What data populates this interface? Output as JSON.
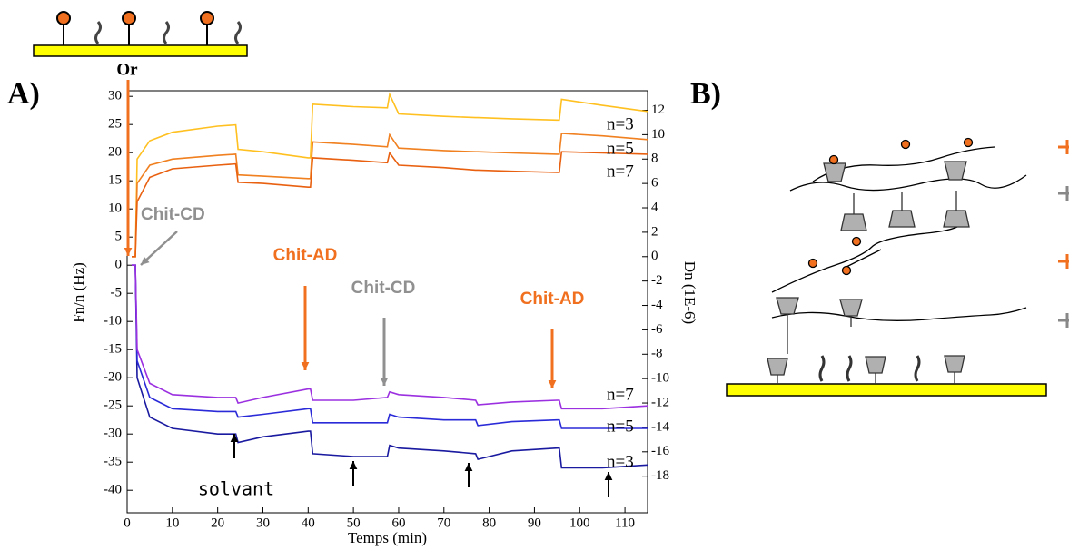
{
  "panel_labels": [
    "A)",
    "B)"
  ],
  "chart_data": {
    "type": "line",
    "surface_label": "Or",
    "xlabel": "Temps (min)",
    "ylabel": "Fn/n (Hz)",
    "y2label": "Dn (1E-6)",
    "annotations": [
      "Chit-CD",
      "Chit-AD",
      "Chit-CD",
      "Chit-AD",
      "solvant"
    ],
    "xlim": [
      0,
      115
    ],
    "xticks": [
      0,
      10,
      20,
      30,
      40,
      50,
      60,
      70,
      80,
      90,
      100,
      110
    ],
    "ylim": [
      -44,
      31
    ],
    "yticks": [
      30,
      25,
      20,
      15,
      10,
      5,
      0,
      -5,
      -10,
      -15,
      -20,
      -25,
      -30,
      -35,
      -40
    ],
    "y2lim": [
      -21,
      13.6
    ],
    "y2ticks": [
      12,
      10,
      8,
      6,
      4,
      2,
      0,
      -2,
      -4,
      -6,
      -8,
      -10,
      -12,
      -14,
      -16,
      -18
    ],
    "x": [
      1,
      1.8,
      2.2,
      5,
      10,
      20,
      24,
      24.5,
      30,
      40,
      40.5,
      41,
      50,
      57.5,
      58,
      60,
      70,
      77,
      77.5,
      85,
      95,
      95.5,
      96,
      105,
      115
    ],
    "series": [
      {
        "name": "n=3",
        "color": "#1a1aa0",
        "values": [
          0,
          0,
          -20,
          -27,
          -29,
          -30,
          -30,
          -31.5,
          -30.5,
          -29.5,
          -29.5,
          -33.5,
          -34,
          -34,
          -32,
          -32.5,
          -33,
          -33.5,
          -34.5,
          -33,
          -32.5,
          -32.5,
          -36,
          -36,
          -35.5
        ]
      },
      {
        "name": "n=5",
        "color": "#2a2ad8",
        "values": [
          0,
          0,
          -17,
          -23.5,
          -25.5,
          -26,
          -26,
          -27,
          -26.5,
          -25.5,
          -25.5,
          -28,
          -28,
          -28,
          -26.5,
          -27,
          -27.5,
          -27.5,
          -28.5,
          -27.8,
          -27.5,
          -27.5,
          -29,
          -29,
          -29
        ]
      },
      {
        "name": "n=7",
        "color": "#9b30e0",
        "values": [
          0,
          0,
          -15,
          -21,
          -23,
          -23.5,
          -23.5,
          -24.5,
          -23.5,
          -22,
          -22,
          -24,
          -24,
          -23.5,
          -22.5,
          -23,
          -23.5,
          -24,
          -24.8,
          -24.3,
          -24,
          -24,
          -25.5,
          -25.5,
          -25
        ]
      },
      {
        "name": "n=3",
        "color": "#ffc020",
        "axis": "y2",
        "values": [
          0,
          0,
          8,
          9.5,
          10.2,
          10.7,
          10.8,
          8.8,
          8.6,
          8.1,
          8.1,
          12.5,
          12.3,
          12.2,
          13.3,
          11.7,
          11.5,
          11.4,
          11.4,
          11.3,
          11.2,
          11.2,
          12.9,
          12.4,
          11.9
        ]
      },
      {
        "name": "n=5",
        "color": "#f08020",
        "axis": "y2",
        "values": [
          0,
          0,
          6,
          7.5,
          8,
          8.3,
          8.4,
          6.7,
          6.6,
          6.4,
          6.4,
          9.4,
          9.2,
          9.0,
          10,
          8.9,
          8.7,
          8.6,
          8.6,
          8.5,
          8.4,
          8.4,
          10.1,
          9.9,
          9.6
        ]
      },
      {
        "name": "n=7",
        "color": "#e86010",
        "axis": "y2",
        "values": [
          0,
          0,
          4.5,
          6.5,
          7.2,
          7.5,
          7.6,
          6.1,
          6.0,
          5.7,
          5.7,
          8.1,
          7.9,
          7.7,
          8.5,
          7.5,
          7.3,
          7.1,
          7.1,
          7.0,
          6.9,
          6.9,
          8.6,
          8.5,
          8.4
        ]
      }
    ]
  }
}
